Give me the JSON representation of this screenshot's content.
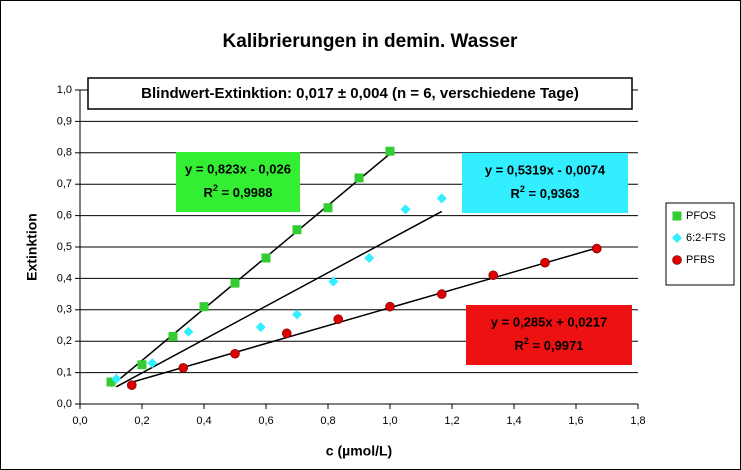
{
  "chart_data": {
    "type": "scatter",
    "title": "Kalibrierungen in demin. Wasser",
    "annotation": "Blindwert-Extinktion: 0,017 ±  0,004 (n = 6, verschiedene Tage)",
    "x_label": "c (µmol/L)",
    "y_label": "Extinktion",
    "xlim": [
      0,
      1.8
    ],
    "ylim": [
      0,
      1.0
    ],
    "xticks": [
      {
        "value": 0,
        "label": "0,0"
      },
      {
        "value": 0.2,
        "label": "0,2"
      },
      {
        "value": 0.4,
        "label": "0,4"
      },
      {
        "value": 0.6,
        "label": "0,6"
      },
      {
        "value": 0.8,
        "label": "0,8"
      },
      {
        "value": 1.0,
        "label": "1,0"
      },
      {
        "value": 1.2,
        "label": "1,2"
      },
      {
        "value": 1.4,
        "label": "1,4"
      },
      {
        "value": 1.6,
        "label": "1,6"
      },
      {
        "value": 1.8,
        "label": "1,8"
      }
    ],
    "yticks": [
      {
        "value": 0,
        "label": "0,0"
      },
      {
        "value": 0.1,
        "label": "0,1"
      },
      {
        "value": 0.2,
        "label": "0,2"
      },
      {
        "value": 0.3,
        "label": "0,3"
      },
      {
        "value": 0.4,
        "label": "0,4"
      },
      {
        "value": 0.5,
        "label": "0,5"
      },
      {
        "value": 0.6,
        "label": "0,6"
      },
      {
        "value": 0.7,
        "label": "0,7"
      },
      {
        "value": 0.8,
        "label": "0,8"
      },
      {
        "value": 0.9,
        "label": "0,9"
      },
      {
        "value": 1.0,
        "label": "1,0"
      }
    ],
    "grid": true,
    "legend": "right",
    "series": [
      {
        "name": "PFOS",
        "color": "#33cc33",
        "marker": "square",
        "x": [
          0.1,
          0.2,
          0.3,
          0.4,
          0.5,
          0.6,
          0.7,
          0.8,
          0.9,
          1.0
        ],
        "values": [
          0.07,
          0.125,
          0.215,
          0.31,
          0.385,
          0.465,
          0.555,
          0.625,
          0.72,
          0.805
        ],
        "trendline": {
          "slope": 0.823,
          "intercept": -0.026,
          "equation": "y = 0,823x - 0,026",
          "r_label": "R",
          "r_sup": "2",
          "r_value": " = 0,9988",
          "box_color": "#33ee33"
        }
      },
      {
        "name": "6:2-FTS",
        "color": "#33eeff",
        "marker": "diamond",
        "x": [
          0.117,
          0.233,
          0.35,
          0.583,
          0.7,
          0.817,
          0.933,
          1.05,
          1.167
        ],
        "values": [
          0.08,
          0.13,
          0.23,
          0.245,
          0.285,
          0.39,
          0.465,
          0.62,
          0.655
        ],
        "trendline": {
          "slope": 0.5319,
          "intercept": -0.0074,
          "equation": "y = 0,5319x - 0,0074",
          "r_label": "R",
          "r_sup": "2",
          "r_value": " = 0,9363",
          "box_color": "#33eeff"
        }
      },
      {
        "name": "PFBS",
        "color": "#dd0000",
        "marker": "circle",
        "x": [
          0.167,
          0.333,
          0.5,
          0.667,
          0.833,
          1.0,
          1.167,
          1.333,
          1.5,
          1.667
        ],
        "values": [
          0.06,
          0.115,
          0.16,
          0.225,
          0.27,
          0.31,
          0.35,
          0.41,
          0.45,
          0.495
        ],
        "trendline": {
          "slope": 0.285,
          "intercept": 0.0217,
          "equation": "y = 0,285x + 0,0217",
          "r_label": "R",
          "r_sup": "2",
          "r_value": " = 0,9971",
          "box_color": "#ee1111"
        }
      }
    ]
  }
}
